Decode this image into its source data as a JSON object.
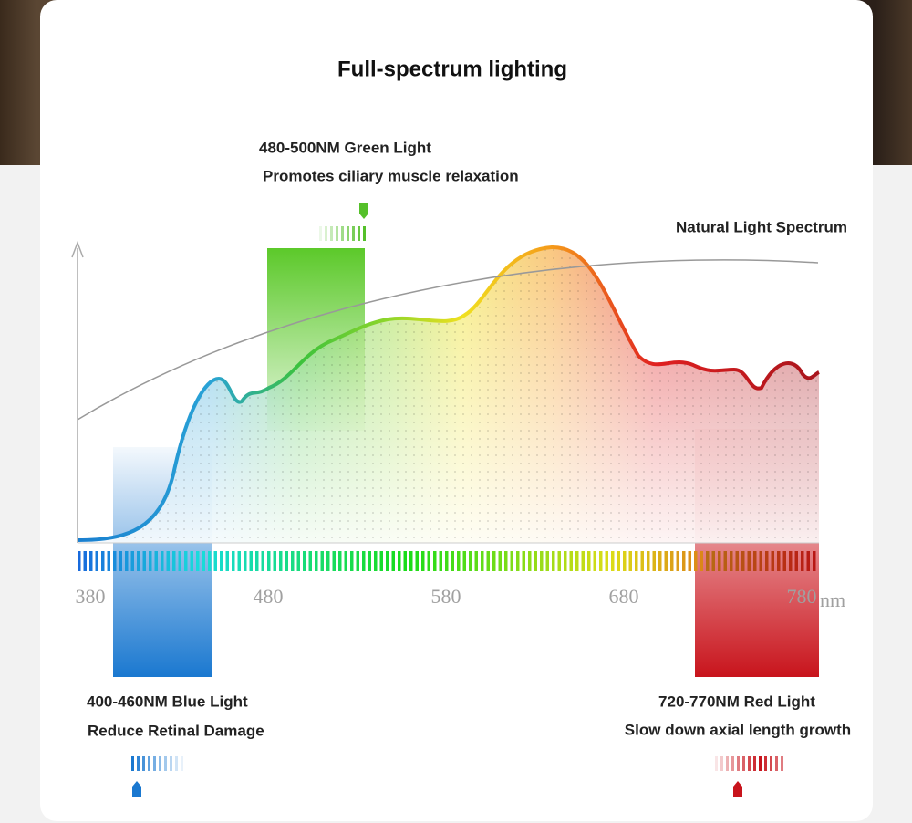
{
  "title": "Full-spectrum lighting",
  "green": {
    "label": "480-500NM Green Light",
    "note": "Promotes ciliary muscle relaxation"
  },
  "curve_label": "Natural Light Spectrum",
  "blue": {
    "label": "400-460NM Blue Light",
    "note": "Reduce Retinal Damage"
  },
  "red": {
    "label": "720-770NM Red Light",
    "note": "Slow down axial length growth"
  },
  "axis": {
    "ticks": [
      380,
      480,
      580,
      680,
      780
    ],
    "unit": "nm"
  }
}
